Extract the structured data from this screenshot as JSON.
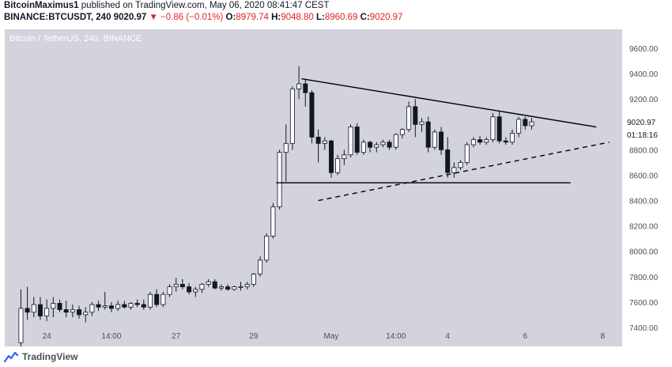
{
  "header": {
    "author": "BitcoinMaximus1",
    "published_text": " published on TradingView.com, May 06, 2020 08:41:47 CEST",
    "symbol": "BINANCE:BTCUSDT, 240",
    "last": "9020.97",
    "change_arrow": "▼",
    "change": "−0.86 (−0.01%)",
    "o_label": "O:",
    "o": "8979.74",
    "h_label": "H:",
    "h": "9048.80",
    "l_label": "L:",
    "l": "8960.69",
    "c_label": "C:",
    "c": "9020.97"
  },
  "footer": {
    "brand": "TradingView",
    "icon": "tradingview-logo-icon"
  },
  "colors": {
    "background": "#d2d3dc",
    "candle_body_up": "#ffffff",
    "candle_body_down": "#131722",
    "wick": "#131722",
    "price_tag_bg": "#ffffff",
    "countdown_bg": "#ffffff"
  },
  "chart_data": {
    "type": "candlestick",
    "title": "Bitcoin / TetherUS, 240, BINANCE",
    "ylim": [
      7250,
      9750
    ],
    "yticks": [
      7400,
      7600,
      7800,
      8000,
      8200,
      8400,
      8600,
      8800,
      9000,
      9200,
      9400,
      9600
    ],
    "ytick_labels": [
      "7400.00",
      "7600.00",
      "7800.00",
      "8000.00",
      "8200.00",
      "8400.00",
      "8600.00",
      "8800.00",
      "9000.00",
      "9200.00",
      "9400.00",
      "9600.00"
    ],
    "xticks": [
      {
        "label": "24",
        "index": 4
      },
      {
        "label": "14:00",
        "index": 14
      },
      {
        "label": "27",
        "index": 24
      },
      {
        "label": "29",
        "index": 36
      },
      {
        "label": "May",
        "index": 48
      },
      {
        "label": "14:00",
        "index": 58
      },
      {
        "label": "4",
        "index": 66
      },
      {
        "label": "6",
        "index": 78
      },
      {
        "label": "8",
        "index": 90
      }
    ],
    "x_range": [
      -2.5,
      93
    ],
    "last_price": "9020.97",
    "last_price_value": 9020.97,
    "countdown": "01:18:16",
    "candles": [
      [
        7280,
        7700,
        7250,
        7550
      ],
      [
        7550,
        7720,
        7460,
        7520
      ],
      [
        7520,
        7640,
        7480,
        7580
      ],
      [
        7580,
        7640,
        7460,
        7490
      ],
      [
        7490,
        7620,
        7450,
        7550
      ],
      [
        7550,
        7640,
        7480,
        7590
      ],
      [
        7590,
        7620,
        7520,
        7540
      ],
      [
        7540,
        7610,
        7480,
        7520
      ],
      [
        7520,
        7580,
        7480,
        7540
      ],
      [
        7540,
        7570,
        7470,
        7500
      ],
      [
        7500,
        7560,
        7440,
        7520
      ],
      [
        7520,
        7600,
        7490,
        7580
      ],
      [
        7580,
        7610,
        7530,
        7560
      ],
      [
        7560,
        7680,
        7540,
        7570
      ],
      [
        7570,
        7600,
        7520,
        7550
      ],
      [
        7550,
        7610,
        7530,
        7580
      ],
      [
        7580,
        7610,
        7550,
        7560
      ],
      [
        7560,
        7600,
        7540,
        7590
      ],
      [
        7590,
        7620,
        7560,
        7580
      ],
      [
        7580,
        7620,
        7540,
        7560
      ],
      [
        7560,
        7680,
        7540,
        7660
      ],
      [
        7660,
        7700,
        7560,
        7580
      ],
      [
        7580,
        7680,
        7560,
        7660
      ],
      [
        7660,
        7740,
        7640,
        7720
      ],
      [
        7720,
        7790,
        7680,
        7740
      ],
      [
        7740,
        7780,
        7700,
        7720
      ],
      [
        7720,
        7750,
        7660,
        7680
      ],
      [
        7680,
        7720,
        7640,
        7700
      ],
      [
        7700,
        7750,
        7670,
        7740
      ],
      [
        7740,
        7780,
        7720,
        7760
      ],
      [
        7760,
        7780,
        7700,
        7710
      ],
      [
        7710,
        7740,
        7690,
        7720
      ],
      [
        7720,
        7740,
        7690,
        7700
      ],
      [
        7700,
        7730,
        7690,
        7720
      ],
      [
        7720,
        7760,
        7690,
        7720
      ],
      [
        7720,
        7760,
        7700,
        7740
      ],
      [
        7740,
        7830,
        7720,
        7820
      ],
      [
        7820,
        7960,
        7800,
        7930
      ],
      [
        7930,
        8140,
        7910,
        8120
      ],
      [
        8120,
        8380,
        8100,
        8350
      ],
      [
        8350,
        8800,
        8330,
        8780
      ],
      [
        8780,
        9000,
        8550,
        8850
      ],
      [
        8850,
        9300,
        8800,
        9280
      ],
      [
        9280,
        9460,
        9200,
        9320
      ],
      [
        9320,
        9360,
        9140,
        9250
      ],
      [
        9250,
        9270,
        8850,
        8900
      ],
      [
        8900,
        8960,
        8700,
        8850
      ],
      [
        8850,
        8900,
        8800,
        8870
      ],
      [
        8870,
        8880,
        8580,
        8620
      ],
      [
        8620,
        8760,
        8600,
        8730
      ],
      [
        8730,
        8800,
        8680,
        8760
      ],
      [
        8760,
        9000,
        8740,
        8980
      ],
      [
        8980,
        9010,
        8760,
        8780
      ],
      [
        8780,
        8880,
        8760,
        8860
      ],
      [
        8860,
        8870,
        8780,
        8820
      ],
      [
        8820,
        8860,
        8780,
        8840
      ],
      [
        8840,
        8880,
        8820,
        8860
      ],
      [
        8860,
        8880,
        8800,
        8820
      ],
      [
        8820,
        8930,
        8800,
        8920
      ],
      [
        8920,
        8970,
        8890,
        8960
      ],
      [
        8960,
        9180,
        8940,
        9140
      ],
      [
        9140,
        9200,
        8900,
        9000
      ],
      [
        9000,
        9050,
        8940,
        9020
      ],
      [
        9020,
        9060,
        8780,
        8820
      ],
      [
        8820,
        8960,
        8800,
        8940
      ],
      [
        8940,
        8980,
        8760,
        8800
      ],
      [
        8800,
        8900,
        8580,
        8620
      ],
      [
        8620,
        8700,
        8580,
        8660
      ],
      [
        8660,
        8720,
        8640,
        8700
      ],
      [
        8700,
        8860,
        8680,
        8840
      ],
      [
        8840,
        8900,
        8820,
        8880
      ],
      [
        8880,
        8910,
        8840,
        8860
      ],
      [
        8860,
        8900,
        8840,
        8880
      ],
      [
        8880,
        9090,
        8860,
        9060
      ],
      [
        9060,
        9110,
        8850,
        8870
      ],
      [
        8870,
        8900,
        8840,
        8860
      ],
      [
        8860,
        8960,
        8840,
        8930
      ],
      [
        8930,
        9060,
        8900,
        9040
      ],
      [
        9040,
        9060,
        8960,
        8990
      ],
      [
        8990,
        9050,
        8960,
        9020
      ]
    ],
    "annotations": [
      {
        "type": "solid",
        "from": [
          43.4,
          9360
        ],
        "to": [
          89,
          8980
        ]
      },
      {
        "type": "solid",
        "from": [
          39.5,
          8540
        ],
        "to": [
          85,
          8540
        ]
      },
      {
        "type": "dashed",
        "from": [
          46,
          8400
        ],
        "to": [
          91,
          8860
        ]
      }
    ]
  }
}
